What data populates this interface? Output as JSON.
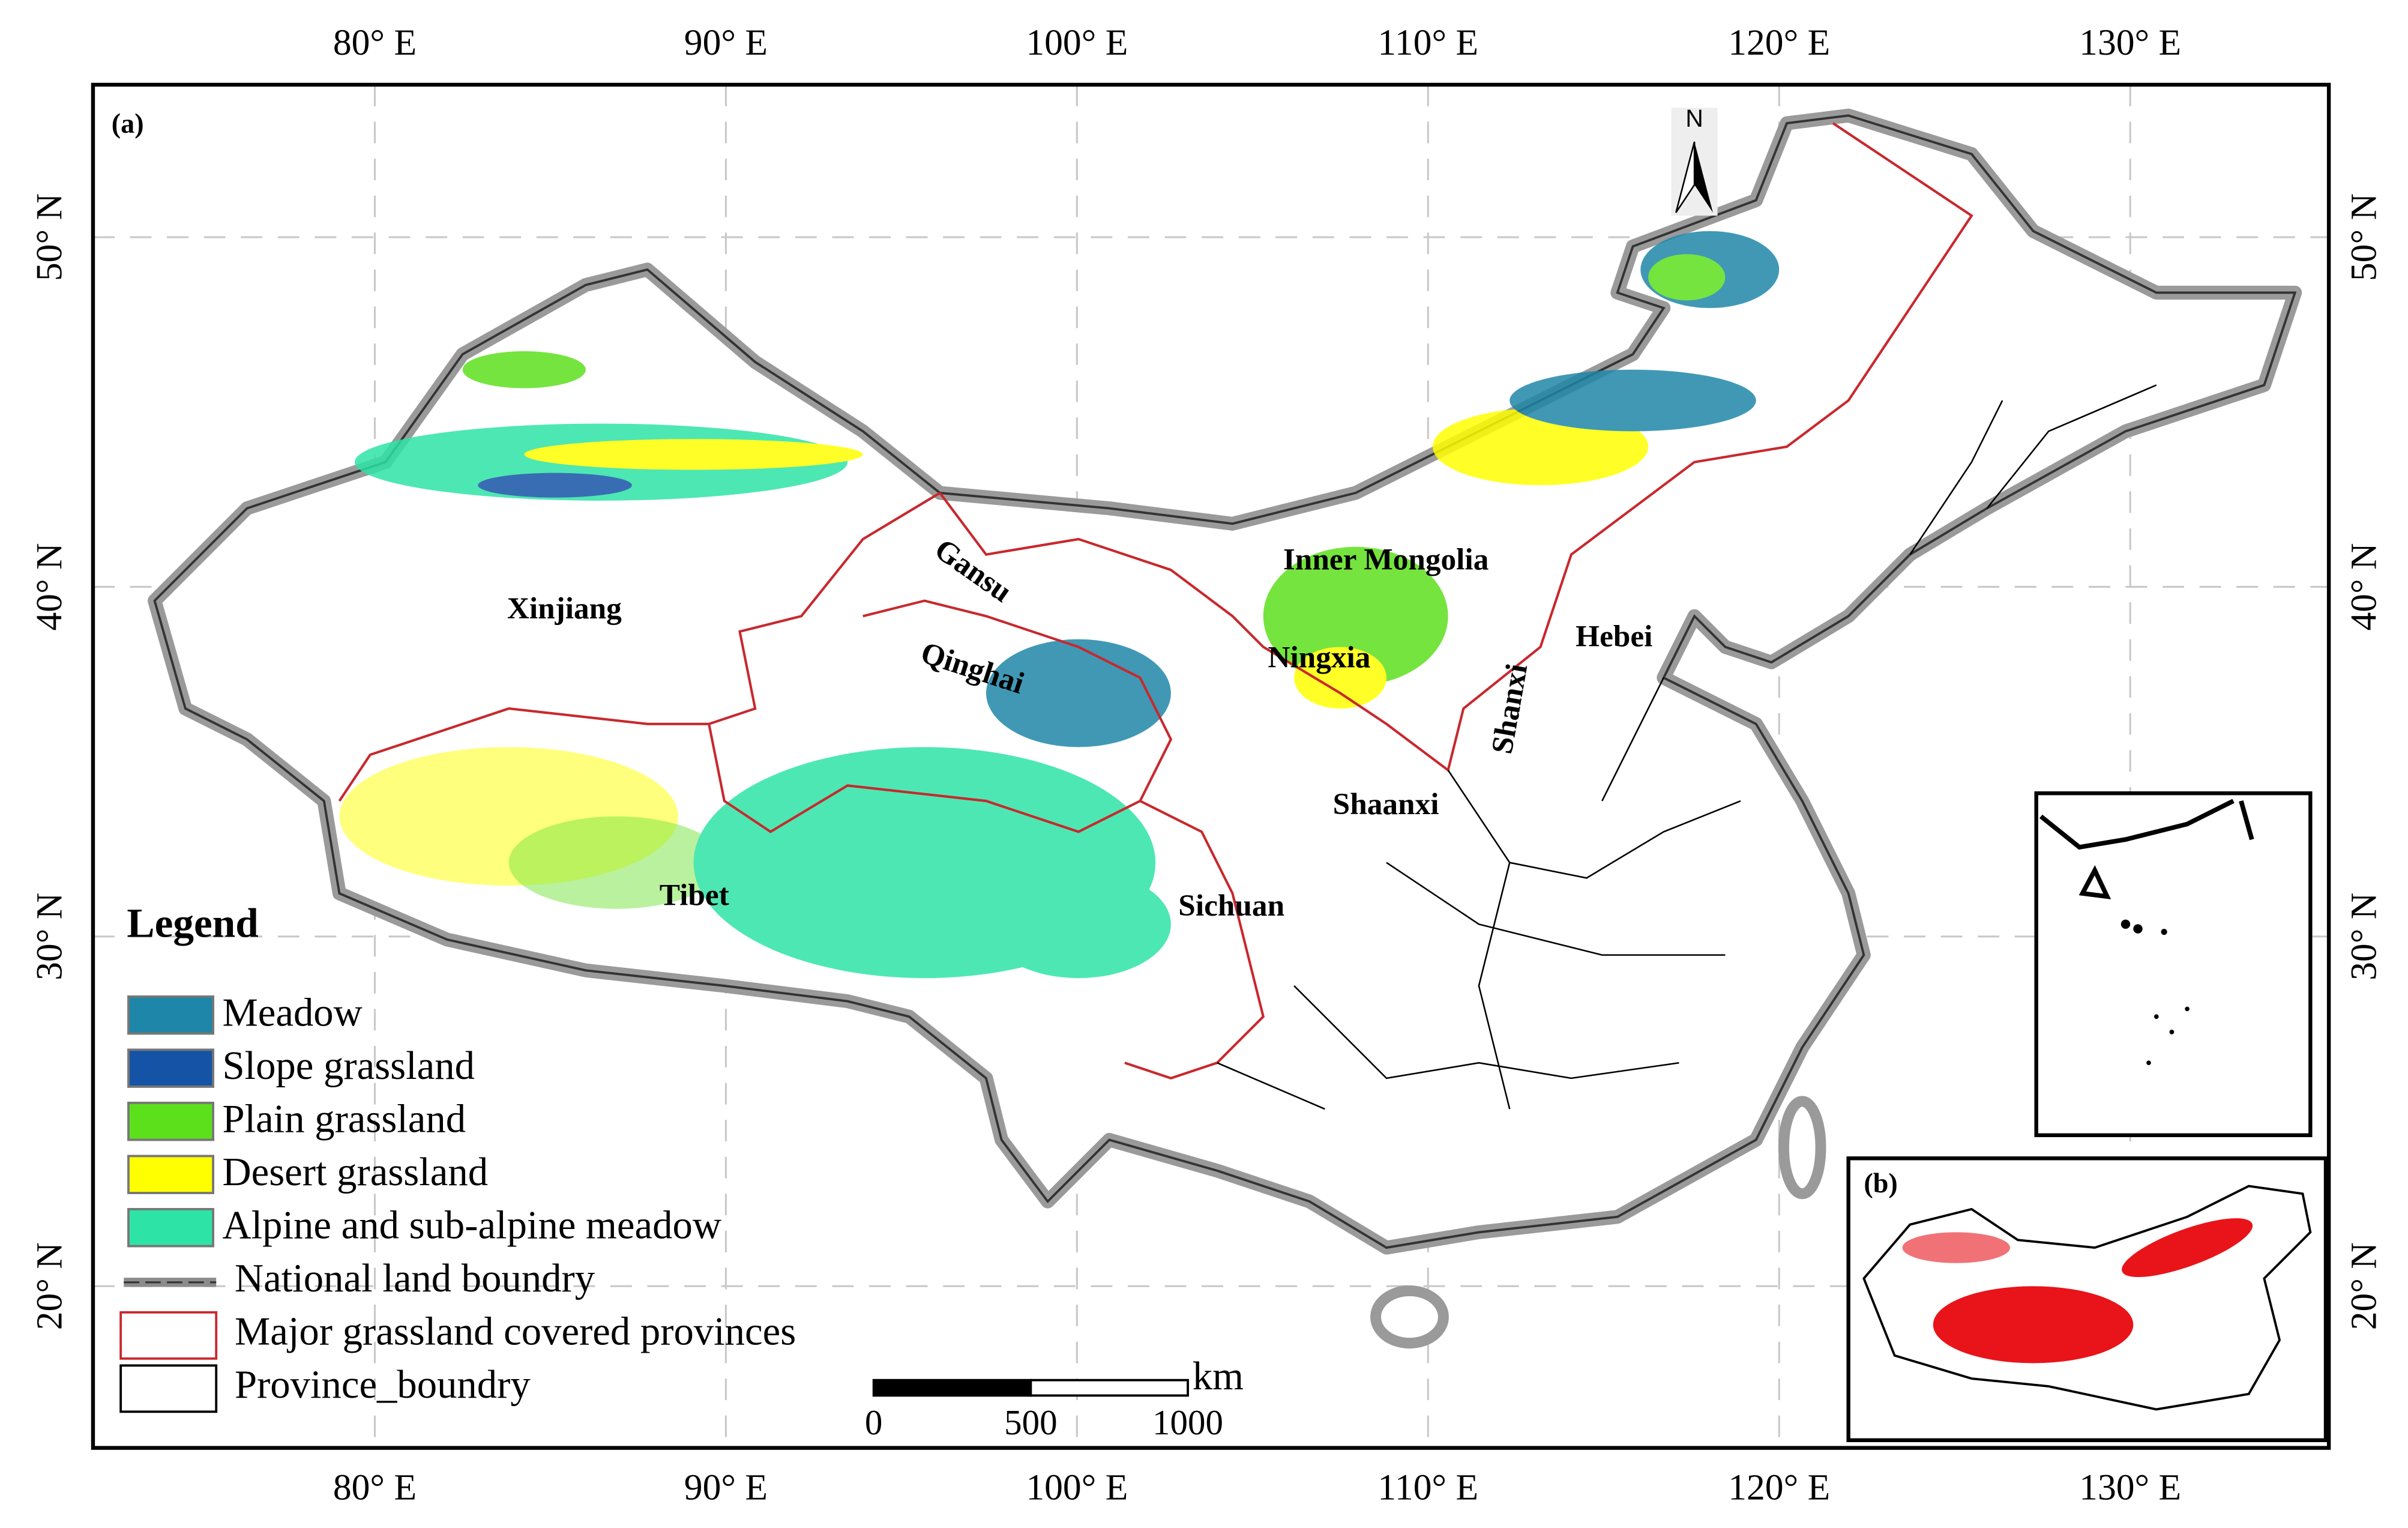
{
  "panel_label": "(a)",
  "inset_label": "(b)",
  "north_arrow": "N",
  "grid": {
    "longitudes": [
      {
        "value": 80,
        "label": "80° E"
      },
      {
        "value": 90,
        "label": "90° E"
      },
      {
        "value": 100,
        "label": "100° E"
      },
      {
        "value": 110,
        "label": "110° E"
      },
      {
        "value": 120,
        "label": "120° E"
      },
      {
        "value": 130,
        "label": "130° E"
      }
    ],
    "latitudes": [
      {
        "value": 50,
        "label": "50° N"
      },
      {
        "value": 40,
        "label": "40° N"
      },
      {
        "value": 30,
        "label": "30° N"
      },
      {
        "value": 20,
        "label": "20° N"
      }
    ]
  },
  "provinces": [
    {
      "label": "Xinjiang",
      "lon": 85.4,
      "lat": 39.3
    },
    {
      "label": "Gansu",
      "lon": 97.0,
      "lat": 40.4,
      "rotate": 35
    },
    {
      "label": "Inner Mongolia",
      "lon": 108.8,
      "lat": 40.7
    },
    {
      "label": "Qinghai",
      "lon": 97.0,
      "lat": 37.6,
      "rotate": 18
    },
    {
      "label": "Ningxia",
      "lon": 106.9,
      "lat": 37.9
    },
    {
      "label": "Shanxi",
      "lon": 112.4,
      "lat": 36.5,
      "rotate": -80
    },
    {
      "label": "Hebei",
      "lon": 115.3,
      "lat": 38.5
    },
    {
      "label": "Shaanxi",
      "lon": 108.8,
      "lat": 33.7
    },
    {
      "label": "Tibet",
      "lon": 89.1,
      "lat": 31.1
    },
    {
      "label": "Sichuan",
      "lon": 104.4,
      "lat": 30.8
    }
  ],
  "legend": {
    "title": "Legend",
    "items": [
      {
        "label": "Meadow",
        "color": "#1e86a8",
        "kind": "fill"
      },
      {
        "label": "Slope grassland",
        "color": "#1553a6",
        "kind": "fill"
      },
      {
        "label": "Plain grassland",
        "color": "#5de01c",
        "kind": "fill"
      },
      {
        "label": "Desert grassland",
        "color": "#ffff00",
        "kind": "fill"
      },
      {
        "label": "Alpine and sub-alpine meadow",
        "color": "#2ee3a6",
        "kind": "fill"
      },
      {
        "label": "National land boundry",
        "color": "#8c8c8c",
        "kind": "line"
      },
      {
        "label": "Major grassland covered provinces",
        "color": "#c8282d",
        "kind": "outline"
      },
      {
        "label": "Province_boundry",
        "color": "#000000",
        "kind": "outline"
      }
    ]
  },
  "scale_bar": {
    "unit": "km",
    "ticks": [
      0,
      500,
      1000
    ]
  }
}
